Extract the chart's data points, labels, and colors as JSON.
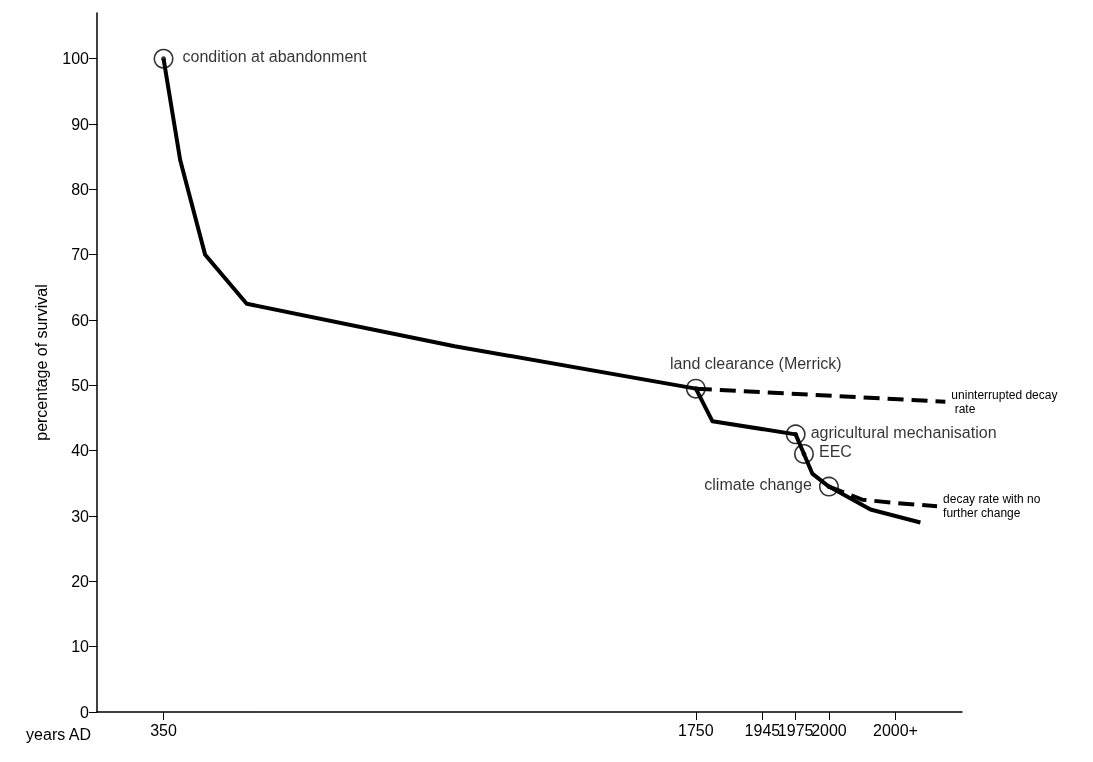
{
  "chart_data": {
    "type": "line",
    "xlabel": "years AD",
    "ylabel": "percentage of survival",
    "categories": [
      null,
      null,
      null,
      null,
      null,
      null,
      null,
      null,
      "350",
      null,
      null,
      null,
      null,
      null,
      null,
      null,
      null,
      null,
      null,
      null,
      null,
      null,
      null,
      null,
      null,
      null,
      null,
      null,
      null,
      null,
      null,
      null,
      null,
      null,
      null,
      null,
      null,
      null,
      null,
      null,
      null,
      null,
      null,
      null,
      null,
      null,
      null,
      null,
      null,
      null,
      null,
      null,
      null,
      null,
      null,
      null,
      null,
      null,
      null,
      null,
      null,
      null,
      null,
      null,
      null,
      null,
      null,
      null,
      null,
      null,
      null,
      null,
      "1750",
      null,
      null,
      null,
      null,
      null,
      null,
      null,
      "1945",
      null,
      null,
      null,
      "1975",
      null,
      null,
      null,
      "2000",
      null,
      null,
      null,
      null,
      null,
      null,
      null,
      "2000+",
      null,
      null,
      null,
      null,
      null,
      null,
      null,
      null
    ],
    "ylim": [
      0,
      107
    ],
    "yticks": [
      0,
      10,
      20,
      30,
      40,
      50,
      60,
      70,
      80,
      90,
      100
    ],
    "grid": false,
    "legend": false,
    "series": [
      {
        "color": "#000000",
        "line_style": "solid",
        "values": [
          null,
          null,
          null,
          null,
          null,
          null,
          null,
          null,
          100,
          null,
          84.5,
          null,
          null,
          70,
          null,
          null,
          null,
          null,
          62.5,
          null,
          null,
          null,
          null,
          null,
          null,
          null,
          null,
          null,
          null,
          null,
          null,
          null,
          null,
          null,
          null,
          null,
          null,
          null,
          null,
          null,
          null,
          null,
          null,
          56,
          null,
          null,
          null,
          null,
          null,
          null,
          null,
          null,
          null,
          null,
          null,
          null,
          null,
          null,
          null,
          null,
          null,
          null,
          null,
          null,
          null,
          null,
          null,
          null,
          null,
          null,
          null,
          null,
          49.5,
          null,
          44.5,
          null,
          null,
          null,
          null,
          null,
          null,
          null,
          null,
          null,
          42.5,
          39.5,
          36.5,
          null,
          34.5,
          null,
          null,
          null,
          null,
          31,
          null,
          null,
          null,
          null,
          null,
          29,
          null,
          null,
          null,
          null,
          null
        ]
      },
      {
        "name": "uninterrupted decay rate",
        "color": "#000000",
        "line_style": "dashed",
        "values": [
          null,
          null,
          null,
          null,
          null,
          null,
          null,
          null,
          null,
          null,
          null,
          null,
          null,
          null,
          null,
          null,
          null,
          null,
          null,
          null,
          null,
          null,
          null,
          null,
          null,
          null,
          null,
          null,
          null,
          null,
          null,
          null,
          null,
          null,
          null,
          null,
          null,
          null,
          null,
          null,
          null,
          null,
          null,
          null,
          null,
          null,
          null,
          null,
          null,
          null,
          null,
          null,
          null,
          null,
          null,
          null,
          null,
          null,
          null,
          null,
          null,
          null,
          null,
          null,
          null,
          null,
          null,
          null,
          null,
          null,
          null,
          null,
          49.5,
          null,
          null,
          null,
          null,
          null,
          null,
          null,
          null,
          null,
          null,
          null,
          null,
          null,
          null,
          null,
          null,
          null,
          null,
          null,
          null,
          null,
          null,
          null,
          null,
          null,
          null,
          null,
          null,
          null,
          47.5,
          null,
          null
        ]
      },
      {
        "name": "decay rate with no further change",
        "color": "#000000",
        "line_style": "dashed",
        "values": [
          null,
          null,
          null,
          null,
          null,
          null,
          null,
          null,
          null,
          null,
          null,
          null,
          null,
          null,
          null,
          null,
          null,
          null,
          null,
          null,
          null,
          null,
          null,
          null,
          null,
          null,
          null,
          null,
          null,
          null,
          null,
          null,
          null,
          null,
          null,
          null,
          null,
          null,
          null,
          null,
          null,
          null,
          null,
          null,
          null,
          null,
          null,
          null,
          null,
          null,
          null,
          null,
          null,
          null,
          null,
          null,
          null,
          null,
          null,
          null,
          null,
          null,
          null,
          null,
          null,
          null,
          null,
          null,
          null,
          null,
          null,
          null,
          null,
          null,
          null,
          null,
          null,
          null,
          null,
          null,
          null,
          null,
          null,
          null,
          null,
          null,
          null,
          null,
          34.5,
          null,
          null,
          null,
          32.5,
          null,
          null,
          null,
          32,
          null,
          null,
          null,
          null,
          31.5,
          null,
          null,
          null
        ]
      },
      {
        "type": "scatter",
        "marker": "circle",
        "color": "#000000",
        "values": [
          null,
          null,
          null,
          null,
          null,
          null,
          null,
          null,
          100,
          null,
          null,
          null,
          null,
          null,
          null,
          null,
          null,
          null,
          null,
          null,
          null,
          null,
          null,
          null,
          null,
          null,
          null,
          null,
          null,
          null,
          null,
          null,
          null,
          null,
          null,
          null,
          null,
          null,
          null,
          null,
          null,
          null,
          null,
          null,
          null,
          null,
          null,
          null,
          null,
          null,
          null,
          null,
          null,
          null,
          null,
          null,
          null,
          null,
          null,
          null,
          null,
          null,
          null,
          null,
          null,
          null,
          null,
          null,
          null,
          null,
          null,
          null,
          49.5,
          null,
          null,
          null,
          null,
          null,
          null,
          null,
          null,
          null,
          null,
          null,
          42.5,
          39.5,
          null,
          null,
          34.5,
          null,
          null,
          null,
          null,
          null,
          null,
          null,
          null,
          null,
          null,
          null,
          null,
          null,
          null,
          null,
          null
        ]
      }
    ],
    "annotations": [
      "condition at abandonment",
      "land clearance (Merrick)",
      "agricultural mechanisation",
      "EEC",
      "climate change"
    ]
  }
}
